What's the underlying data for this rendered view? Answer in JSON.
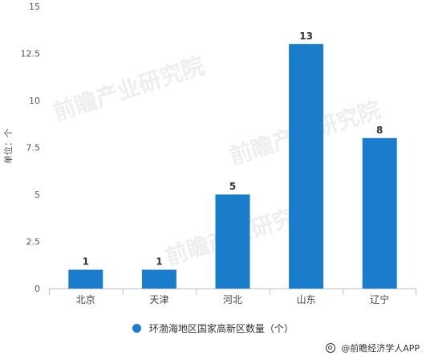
{
  "chart_data": {
    "type": "bar",
    "categories": [
      "北京",
      "天津",
      "河北",
      "山东",
      "辽宁"
    ],
    "series": [
      {
        "name": "环渤海地区国家高新区数量（个）",
        "values": [
          1,
          1,
          5,
          13,
          8
        ]
      }
    ],
    "ylabel": "单位：个",
    "ylim": [
      0,
      15
    ],
    "yticks": [
      "0",
      "2.5",
      "5",
      "7.5",
      "10",
      "12.5",
      "15"
    ],
    "grid": false,
    "legend_position": "bottom",
    "bar_color": "#1a7dcb"
  },
  "legend": {
    "label": "环渤海地区国家高新区数量（个）"
  },
  "watermark": {
    "brand": "前瞻产业研究院"
  },
  "credit": {
    "text": "@前瞻经济学人APP",
    "icon": "circle-at-icon"
  }
}
